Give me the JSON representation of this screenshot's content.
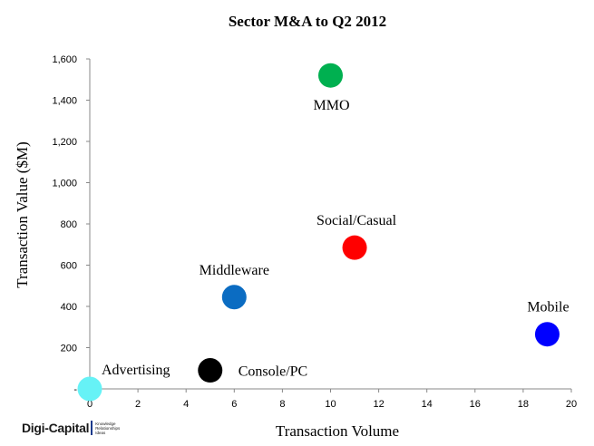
{
  "chart_data": {
    "type": "scatter",
    "title": "Sector M&A to Q2 2012",
    "xlabel": "Transaction Volume",
    "ylabel": "Transaction Value ($M)",
    "xlim": [
      0,
      20
    ],
    "ylim": [
      0,
      1600
    ],
    "x_ticks": [
      "0",
      "2",
      "4",
      "6",
      "8",
      "10",
      "12",
      "14",
      "16",
      "18",
      "20"
    ],
    "y_ticks": [
      "-",
      "200",
      "400",
      "600",
      "800",
      "1,000",
      "1,200",
      "1,400",
      "1,600"
    ],
    "grid": false,
    "points": [
      {
        "label": "Advertising",
        "x": 0,
        "y": 0,
        "color": "#66f2f6"
      },
      {
        "label": "Console/PC",
        "x": 5,
        "y": 90,
        "color": "#000000"
      },
      {
        "label": "Middleware",
        "x": 6,
        "y": 445,
        "color": "#0b6cc2"
      },
      {
        "label": "Social/Casual",
        "x": 11,
        "y": 685,
        "color": "#ff0000"
      },
      {
        "label": "MMO",
        "x": 10,
        "y": 1520,
        "color": "#00b050"
      },
      {
        "label": "Mobile",
        "x": 19,
        "y": 265,
        "color": "#0000ff"
      }
    ]
  },
  "logo": {
    "name": "Digi-Capital",
    "tagline": [
      "Knowledge",
      "Relationships",
      "Ideas"
    ]
  }
}
